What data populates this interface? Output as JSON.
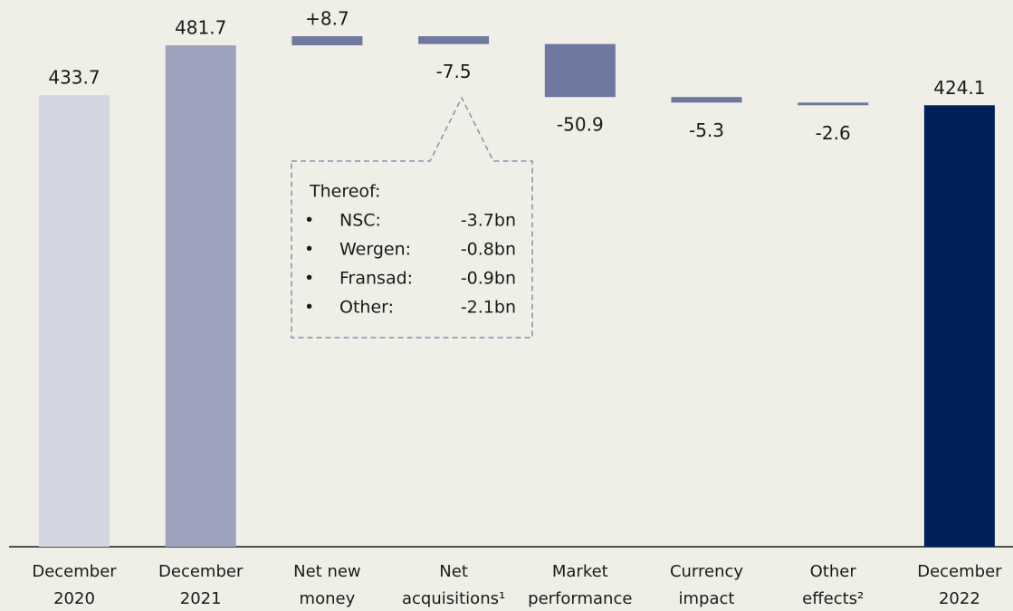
{
  "chart_data": {
    "type": "waterfall",
    "categories": [
      [
        "December",
        "2020"
      ],
      [
        "December",
        "2021"
      ],
      [
        "Net new",
        "money"
      ],
      [
        "Net",
        "acquisitions¹"
      ],
      [
        "Market",
        "performance"
      ],
      [
        "Currency",
        "impact"
      ],
      [
        "Other",
        "effects²"
      ],
      [
        "December",
        "2022"
      ]
    ],
    "measure": [
      "absolute",
      "absolute",
      "relative",
      "relative",
      "relative",
      "relative",
      "relative",
      "absolute"
    ],
    "values": [
      433.7,
      481.7,
      8.7,
      -7.5,
      -50.9,
      -5.3,
      -2.6,
      424.1
    ],
    "value_labels": [
      "433.7",
      "481.7",
      "+8.7",
      "-7.5",
      "-50.9",
      "-5.3",
      "-2.6",
      "424.1"
    ],
    "colors": [
      "#d3d5e1",
      "#9ea3bd",
      "#6f789f",
      "#6f789f",
      "#6f789f",
      "#6f789f",
      "#6f789f",
      "#00205b"
    ],
    "annotation": {
      "title": "Thereof:",
      "items": [
        {
          "name": "NSC:",
          "value": "-3.7bn"
        },
        {
          "name": "Wergen:",
          "value": "-0.8bn"
        },
        {
          "name": "Fransad:",
          "value": "-0.9bn"
        },
        {
          "name": "Other:",
          "value": "-2.1bn"
        }
      ]
    }
  }
}
